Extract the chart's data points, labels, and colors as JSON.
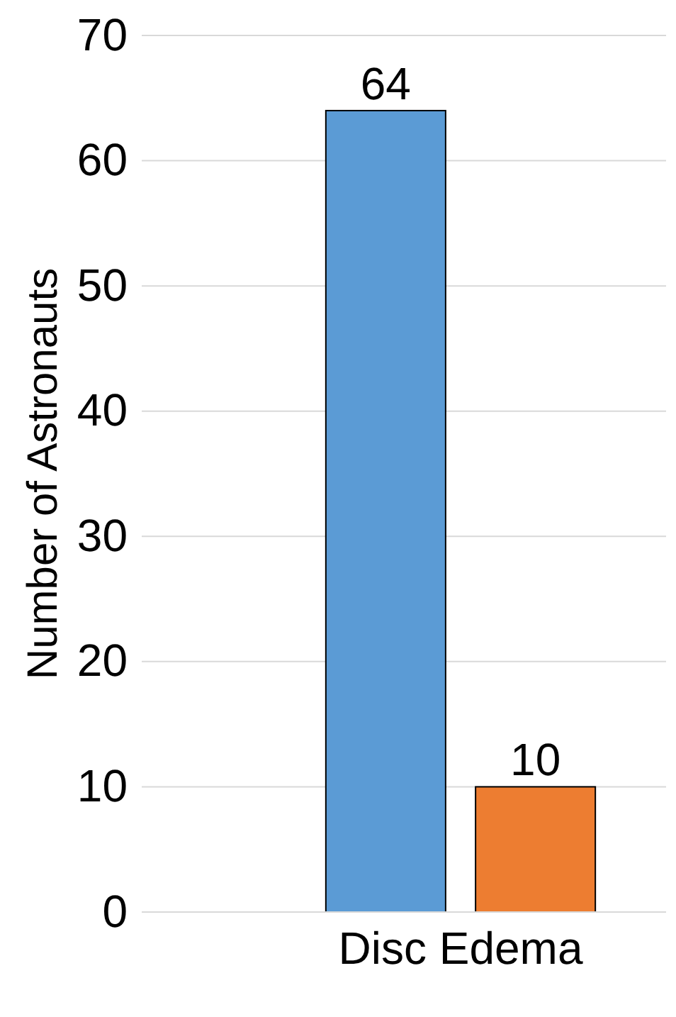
{
  "chart_data": {
    "type": "bar",
    "ylabel": "Number of Astronauts",
    "categories": [
      "Disc Edema"
    ],
    "series": [
      {
        "color": "#5b9bd5",
        "values": [
          64
        ]
      },
      {
        "color": "#ed7d31",
        "values": [
          10
        ]
      }
    ],
    "ylim": [
      0,
      70
    ],
    "yticks": [
      0,
      10,
      20,
      30,
      40,
      50,
      60,
      70
    ],
    "grid": "y",
    "data_labels": true
  }
}
